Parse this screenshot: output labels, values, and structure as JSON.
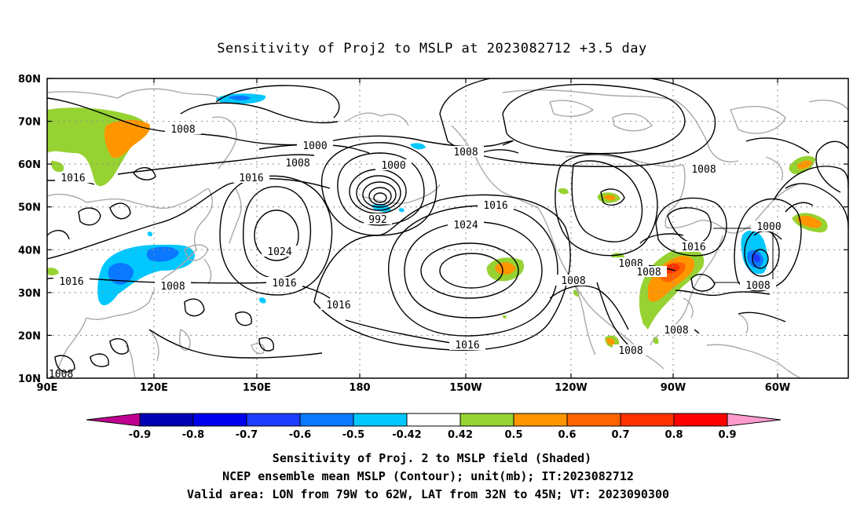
{
  "title": "Sensitivity of Proj2 to MSLP at 2023082712 +3.5 day",
  "lat_ticks": [
    "80N",
    "70N",
    "60N",
    "50N",
    "40N",
    "30N",
    "20N",
    "10N"
  ],
  "lon_ticks": [
    "90E",
    "120E",
    "150E",
    "180",
    "150W",
    "120W",
    "90W",
    "60W"
  ],
  "contour_labels": [
    {
      "text": "1008",
      "id": "c1"
    },
    {
      "text": "1016",
      "id": "c2"
    },
    {
      "text": "1000",
      "id": "c3"
    },
    {
      "text": "1008",
      "id": "c4"
    },
    {
      "text": "1016",
      "id": "c5"
    },
    {
      "text": "1000",
      "id": "c6"
    },
    {
      "text": "992",
      "id": "c7"
    },
    {
      "text": "1008",
      "id": "c8"
    },
    {
      "text": "1016",
      "id": "c9"
    },
    {
      "text": "1024",
      "id": "c10"
    },
    {
      "text": "1024",
      "id": "c11"
    },
    {
      "text": "1016",
      "id": "c12"
    },
    {
      "text": "1008",
      "id": "c13"
    },
    {
      "text": "1016",
      "id": "c14"
    },
    {
      "text": "1016",
      "id": "c15"
    },
    {
      "text": "1016",
      "id": "c16"
    },
    {
      "text": "1008",
      "id": "c17"
    },
    {
      "text": "1008",
      "id": "c18"
    },
    {
      "text": "1008",
      "id": "c19"
    },
    {
      "text": "1016",
      "id": "c20"
    },
    {
      "text": "1000",
      "id": "c21"
    },
    {
      "text": "1008",
      "id": "c22"
    },
    {
      "text": "1008",
      "id": "c23"
    },
    {
      "text": "1008",
      "id": "c24"
    },
    {
      "text": "1008",
      "id": "c25"
    }
  ],
  "colorbar": {
    "labels": [
      "-0.9",
      "-0.8",
      "-0.7",
      "-0.6",
      "-0.5",
      "-0.42",
      "0.42",
      "0.5",
      "0.6",
      "0.7",
      "0.8",
      "0.9"
    ],
    "colors": [
      "#c0008f",
      "#0000b4",
      "#0000f0",
      "#1e3cff",
      "#0a78ff",
      "#00c8ff",
      "#ffffff",
      "#96d232",
      "#ff9600",
      "#ff6400",
      "#ff3200",
      "#ff0000",
      "#ff9bcd"
    ]
  },
  "captions": {
    "line1": "Sensitivity of Proj. 2 to MSLP field (Shaded)",
    "line2": "NCEP ensemble mean MSLP (Contour); unit(mb); IT:2023082712",
    "line3": "Valid area: LON from 79W to 62W, LAT from 32N to 45N; VT: 2023090300"
  }
}
